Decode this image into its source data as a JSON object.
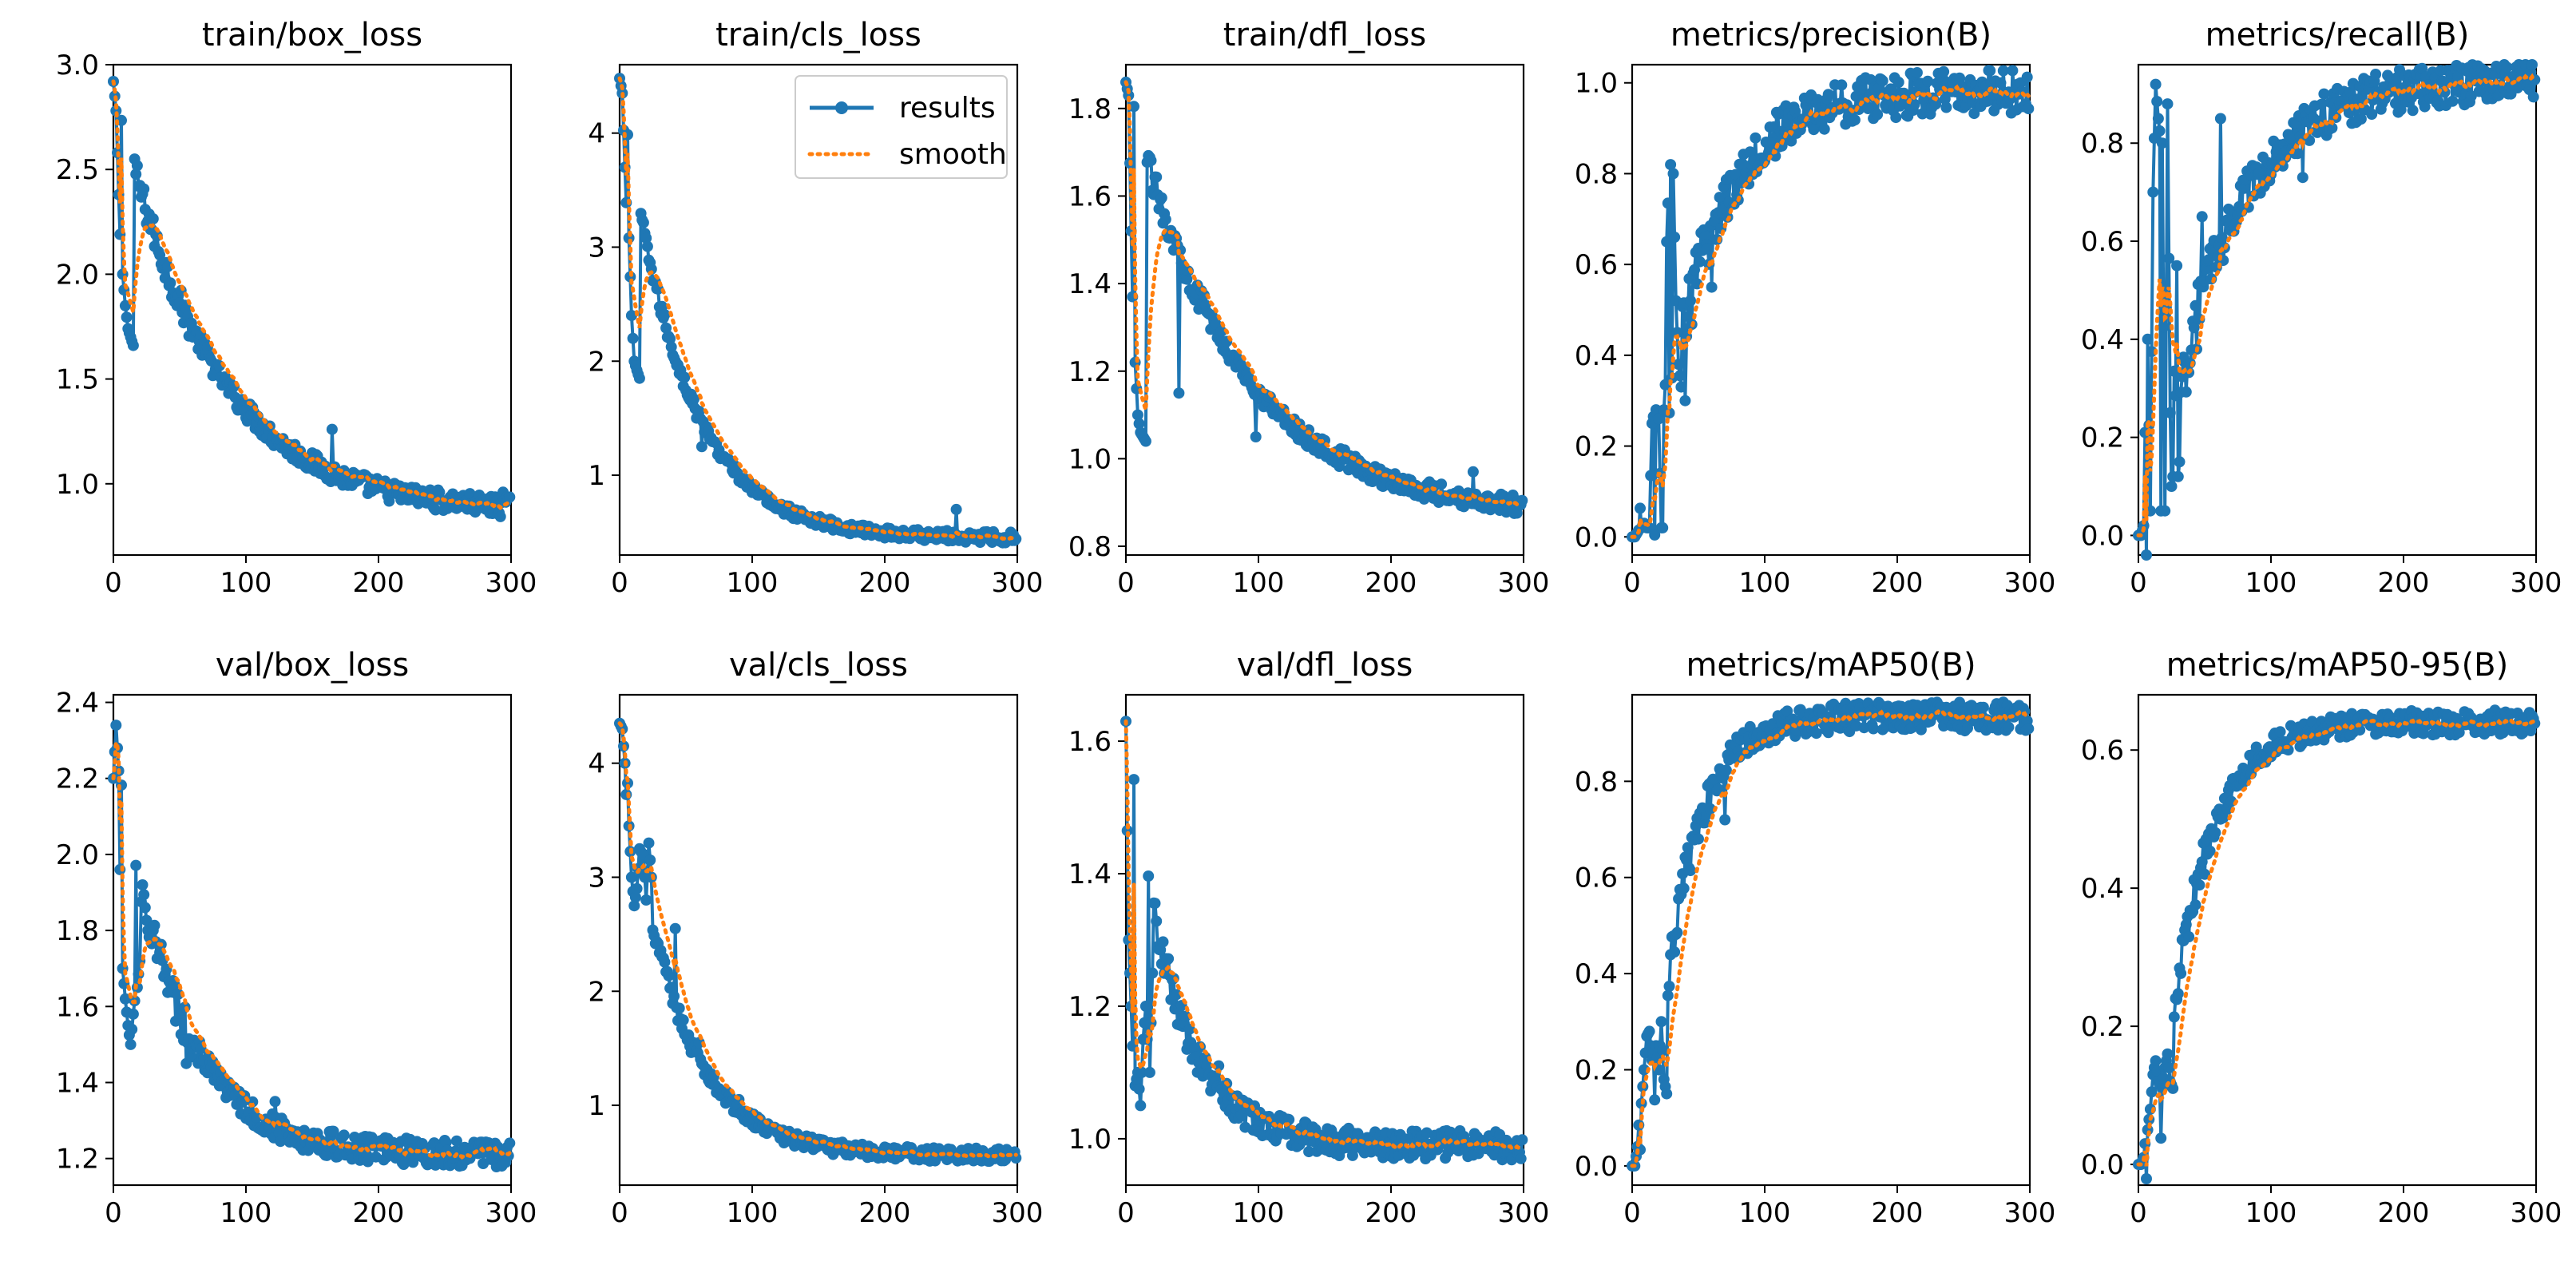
{
  "colors": {
    "results": "#1f77b4",
    "smooth": "#ff7f0e",
    "axis": "#000000",
    "background": "#ffffff"
  },
  "legend": {
    "placement": "top-right of train/cls_loss panel",
    "entries": [
      {
        "label": "results",
        "style": "line-with-dots"
      },
      {
        "label": "smooth",
        "style": "dotted"
      }
    ]
  },
  "chart_data": [
    {
      "type": "line",
      "title": "train/box_loss",
      "xlabel": "",
      "ylabel": "",
      "xlim": [
        0,
        300
      ],
      "ylim": [
        0.66,
        3.0
      ],
      "xticks": [
        0,
        100,
        200,
        300
      ],
      "yticks": [
        1.0,
        1.5,
        2.0,
        2.5,
        3.0
      ],
      "ytick_labels": [
        "1.0",
        "1.5",
        "2.0",
        "2.5",
        "3.0"
      ],
      "shape": {
        "kind": "decay",
        "start": 2.92,
        "end": 0.86,
        "tau": 70,
        "early": [
          2.92,
          2.78,
          2.38,
          2.0,
          1.85,
          1.74,
          1.7,
          1.66
        ],
        "noise": 0.05
      },
      "spikes": [
        [
          103,
          1.38
        ],
        [
          165,
          1.26
        ],
        [
          294,
          0.96
        ]
      ],
      "legend": false
    },
    {
      "type": "line",
      "title": "train/cls_loss",
      "xlabel": "",
      "ylabel": "",
      "xlim": [
        0,
        300
      ],
      "ylim": [
        0.3,
        4.6
      ],
      "xticks": [
        0,
        100,
        200,
        300
      ],
      "yticks": [
        1,
        2,
        3,
        4
      ],
      "ytick_labels": [
        "1",
        "2",
        "3",
        "4"
      ],
      "shape": {
        "kind": "decay",
        "start": 4.48,
        "end": 0.45,
        "tau": 45,
        "early": [
          4.48,
          4.35,
          3.7,
          3.08,
          2.4,
          2.0,
          1.92,
          1.85
        ],
        "noise": 0.05
      },
      "spikes": [
        [
          62,
          1.25
        ],
        [
          78,
          1.15
        ],
        [
          103,
          0.85
        ],
        [
          254,
          0.7
        ]
      ],
      "legend": true
    },
    {
      "type": "line",
      "title": "train/dfl_loss",
      "xlabel": "",
      "ylabel": "",
      "xlim": [
        0,
        300
      ],
      "ylim": [
        0.78,
        1.9
      ],
      "xticks": [
        0,
        100,
        200,
        300
      ],
      "yticks": [
        0.8,
        1.0,
        1.2,
        1.4,
        1.6,
        1.8
      ],
      "ytick_labels": [
        "0.8",
        "1.0",
        "1.2",
        "1.4",
        "1.6",
        "1.8"
      ],
      "shape": {
        "kind": "decay",
        "start": 1.86,
        "end": 0.87,
        "tau": 80,
        "early": [
          1.86,
          1.83,
          1.52,
          1.22,
          1.1,
          1.06,
          1.05,
          1.04
        ],
        "noise": 0.022
      },
      "spikes": [
        [
          40,
          1.15
        ],
        [
          98,
          1.05
        ],
        [
          165,
          1.02
        ],
        [
          262,
          0.97
        ]
      ],
      "legend": false
    },
    {
      "type": "line",
      "title": "metrics/precision(B)",
      "xlabel": "",
      "ylabel": "",
      "xlim": [
        0,
        300
      ],
      "ylim": [
        -0.04,
        1.04
      ],
      "xticks": [
        0,
        100,
        200,
        300
      ],
      "yticks": [
        0.0,
        0.2,
        0.4,
        0.6,
        0.8,
        1.0
      ],
      "ytick_labels": [
        "0.0",
        "0.2",
        "0.4",
        "0.6",
        "0.8",
        "1.0"
      ],
      "shape": {
        "kind": "rise",
        "start": 0.0,
        "end": 0.98,
        "tau": 40,
        "delay": 14,
        "early": [
          0.0,
          0.0,
          0.01,
          0.02,
          0.03,
          0.02,
          0.02,
          0.25,
          0.28,
          0.26,
          0.02,
          0.02,
          0.65,
          0.82,
          0.8,
          0.52,
          0.38,
          0.33
        ],
        "noise": 0.05
      },
      "spikes": [
        [
          24,
          0.28
        ],
        [
          30,
          0.35
        ],
        [
          40,
          0.3
        ],
        [
          60,
          0.55
        ]
      ],
      "legend": false
    },
    {
      "type": "line",
      "title": "metrics/recall(B)",
      "xlabel": "",
      "ylabel": "",
      "xlim": [
        0,
        300
      ],
      "ylim": [
        -0.04,
        0.96
      ],
      "xticks": [
        0,
        100,
        200,
        300
      ],
      "yticks": [
        0.0,
        0.2,
        0.4,
        0.6,
        0.8
      ],
      "ytick_labels": [
        "0.0",
        "0.2",
        "0.4",
        "0.6",
        "0.8"
      ],
      "shape": {
        "kind": "rise",
        "start": 0.0,
        "end": 0.93,
        "tau": 50,
        "delay": 12,
        "early": [
          0.0,
          0.0,
          0.02,
          0.4,
          0.05,
          0.7,
          0.92,
          0.85,
          0.8,
          0.05,
          0.88,
          0.25,
          0.12,
          0.55,
          0.15
        ],
        "noise": 0.045
      },
      "spikes": [
        [
          20,
          0.05
        ],
        [
          25,
          0.1
        ],
        [
          30,
          0.12
        ],
        [
          48,
          0.65
        ],
        [
          62,
          0.85
        ],
        [
          124,
          0.73
        ]
      ],
      "legend": false
    },
    {
      "type": "line",
      "title": "val/box_loss",
      "xlabel": "",
      "ylabel": "",
      "xlim": [
        0,
        300
      ],
      "ylim": [
        1.13,
        2.42
      ],
      "xticks": [
        0,
        100,
        200,
        300
      ],
      "yticks": [
        1.2,
        1.4,
        1.6,
        1.8,
        2.0,
        2.2,
        2.4
      ],
      "ytick_labels": [
        "1.2",
        "1.4",
        "1.6",
        "1.8",
        "2.0",
        "2.2",
        "2.4"
      ],
      "shape": {
        "kind": "hump",
        "start": 2.34,
        "end": 1.21,
        "tau": 45,
        "early": [
          2.2,
          2.34,
          2.22,
          1.7,
          1.62,
          1.55,
          1.5,
          1.58,
          1.65,
          1.72
        ],
        "noise": 0.035
      },
      "spikes": [
        [
          24,
          1.86
        ],
        [
          30,
          1.8
        ],
        [
          55,
          1.45
        ],
        [
          72,
          1.47
        ],
        [
          122,
          1.35
        ]
      ],
      "legend": false
    },
    {
      "type": "line",
      "title": "val/cls_loss",
      "xlabel": "",
      "ylabel": "",
      "xlim": [
        0,
        300
      ],
      "ylim": [
        0.3,
        4.6
      ],
      "xticks": [
        0,
        100,
        200,
        300
      ],
      "yticks": [
        1,
        2,
        3,
        4
      ],
      "ytick_labels": [
        "1",
        "2",
        "3",
        "4"
      ],
      "shape": {
        "kind": "hump",
        "start": 4.35,
        "end": 0.56,
        "tau": 40,
        "early": [
          4.35,
          4.3,
          4.0,
          3.45,
          3.0,
          2.75,
          2.9,
          3.25,
          3.2,
          2.8,
          3.3,
          3.0
        ],
        "noise": 0.06
      },
      "spikes": [
        [
          42,
          2.55
        ],
        [
          60,
          1.55
        ],
        [
          90,
          1.05
        ]
      ],
      "legend": false
    },
    {
      "type": "line",
      "title": "val/dfl_loss",
      "xlabel": "",
      "ylabel": "",
      "xlim": [
        0,
        300
      ],
      "ylim": [
        0.93,
        1.67
      ],
      "xticks": [
        0,
        100,
        200,
        300
      ],
      "yticks": [
        1.0,
        1.2,
        1.4,
        1.6
      ],
      "ytick_labels": [
        "1.0",
        "1.2",
        "1.4",
        "1.6"
      ],
      "shape": {
        "kind": "hump",
        "start": 1.63,
        "end": 0.99,
        "tau": 35,
        "early": [
          1.63,
          1.3,
          1.2,
          1.08,
          1.1,
          1.05,
          1.15,
          1.2,
          1.1,
          1.25
        ],
        "noise": 0.022
      },
      "spikes": [
        [
          24,
          1.29
        ],
        [
          34,
          1.21
        ],
        [
          70,
          1.11
        ],
        [
          120,
          1.03
        ]
      ],
      "legend": false
    },
    {
      "type": "line",
      "title": "metrics/mAP50(B)",
      "xlabel": "",
      "ylabel": "",
      "xlim": [
        0,
        300
      ],
      "ylim": [
        -0.04,
        0.98
      ],
      "xticks": [
        0,
        100,
        200,
        300
      ],
      "yticks": [
        0.0,
        0.2,
        0.4,
        0.6,
        0.8
      ],
      "ytick_labels": [
        "0.0",
        "0.2",
        "0.4",
        "0.6",
        "0.8"
      ],
      "shape": {
        "kind": "rise",
        "start": 0.0,
        "end": 0.935,
        "tau": 25,
        "delay": 14,
        "early": [
          0.0,
          0.0,
          0.04,
          0.13,
          0.2,
          0.27,
          0.28,
          0.22,
          0.25,
          0.2,
          0.3,
          0.18,
          0.15
        ],
        "noise": 0.03
      },
      "spikes": [
        [
          50,
          0.68
        ],
        [
          70,
          0.72
        ]
      ],
      "legend": false
    },
    {
      "type": "line",
      "title": "metrics/mAP50-95(B)",
      "xlabel": "",
      "ylabel": "",
      "xlim": [
        0,
        300
      ],
      "ylim": [
        -0.03,
        0.68
      ],
      "xticks": [
        0,
        100,
        200,
        300
      ],
      "yticks": [
        0.0,
        0.2,
        0.4,
        0.6
      ],
      "ytick_labels": [
        "0.0",
        "0.2",
        "0.4",
        "0.6"
      ],
      "shape": {
        "kind": "rise",
        "start": 0.0,
        "end": 0.64,
        "tau": 30,
        "delay": 14,
        "early": [
          0.0,
          0.0,
          0.01,
          0.05,
          0.08,
          0.13,
          0.15,
          0.12,
          0.11,
          0.14,
          0.16,
          0.12,
          0.11
        ],
        "noise": 0.018
      },
      "spikes": [
        [
          50,
          0.42
        ],
        [
          62,
          0.5
        ]
      ],
      "legend": false
    }
  ]
}
